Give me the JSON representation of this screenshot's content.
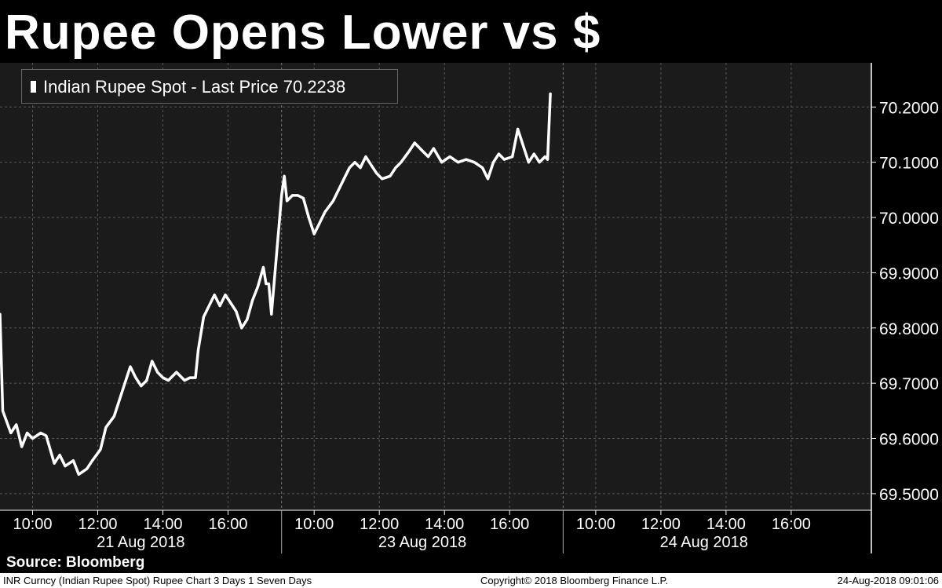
{
  "title": "Rupee Opens Lower vs $",
  "legend": {
    "label": "Indian Rupee Spot - Last Price 70.2238"
  },
  "source": "Source: Bloomberg",
  "footer": {
    "left": "INR Curncy (Indian Rupee Spot) Rupee Chart 3 Days 1 Seven Days",
    "center": "Copyright© 2018 Bloomberg Finance L.P.",
    "right": "24-Aug-2018 09:01:06"
  },
  "colors": {
    "background": "#000000",
    "plot": "#1b1b1b",
    "line": "#ffffff",
    "grid": "#555555"
  },
  "chart_data": {
    "type": "line",
    "grid": true,
    "legend_position": "top-left",
    "ylim": [
      69.47,
      70.28
    ],
    "y_ticks": [
      "70.2000",
      "70.1000",
      "70.0000",
      "69.9000",
      "69.8000",
      "69.7000",
      "69.6000",
      "69.5000"
    ],
    "y_tick_values": [
      70.2,
      70.1,
      70.0,
      69.9,
      69.8,
      69.7,
      69.6,
      69.5
    ],
    "sessions": [
      {
        "date": "21 Aug 2018",
        "ticks": [
          "10:00",
          "12:00",
          "14:00",
          "16:00"
        ]
      },
      {
        "date": "23 Aug 2018",
        "ticks": [
          "10:00",
          "12:00",
          "14:00",
          "16:00"
        ]
      },
      {
        "date": "24 Aug 2018",
        "ticks": [
          "10:00",
          "12:00",
          "14:00",
          "16:00"
        ]
      }
    ],
    "series": [
      {
        "name": "Indian Rupee Spot",
        "last": 70.2238,
        "points": [
          [
            "21 Aug 09:00",
            69.825
          ],
          [
            "21 Aug 09:05",
            69.65
          ],
          [
            "21 Aug 09:20",
            69.61
          ],
          [
            "21 Aug 09:30",
            69.625
          ],
          [
            "21 Aug 09:40",
            69.585
          ],
          [
            "21 Aug 09:50",
            69.61
          ],
          [
            "21 Aug 10:00",
            69.6
          ],
          [
            "21 Aug 10:15",
            69.61
          ],
          [
            "21 Aug 10:25",
            69.605
          ],
          [
            "21 Aug 10:40",
            69.555
          ],
          [
            "21 Aug 10:50",
            69.57
          ],
          [
            "21 Aug 11:00",
            69.55
          ],
          [
            "21 Aug 11:15",
            69.56
          ],
          [
            "21 Aug 11:25",
            69.535
          ],
          [
            "21 Aug 11:40",
            69.545
          ],
          [
            "21 Aug 11:50",
            69.56
          ],
          [
            "21 Aug 12:05",
            69.58
          ],
          [
            "21 Aug 12:15",
            69.62
          ],
          [
            "21 Aug 12:30",
            69.64
          ],
          [
            "21 Aug 12:40",
            69.67
          ],
          [
            "21 Aug 12:50",
            69.7
          ],
          [
            "21 Aug 13:00",
            69.73
          ],
          [
            "21 Aug 13:10",
            69.71
          ],
          [
            "21 Aug 13:20",
            69.695
          ],
          [
            "21 Aug 13:30",
            69.705
          ],
          [
            "21 Aug 13:40",
            69.74
          ],
          [
            "21 Aug 13:50",
            69.72
          ],
          [
            "21 Aug 14:00",
            69.71
          ],
          [
            "21 Aug 14:10",
            69.705
          ],
          [
            "21 Aug 14:25",
            69.72
          ],
          [
            "21 Aug 14:40",
            69.705
          ],
          [
            "21 Aug 14:50",
            69.71
          ],
          [
            "21 Aug 15:00",
            69.71
          ],
          [
            "21 Aug 15:05",
            69.76
          ],
          [
            "21 Aug 15:15",
            69.82
          ],
          [
            "21 Aug 15:25",
            69.84
          ],
          [
            "21 Aug 15:35",
            69.86
          ],
          [
            "21 Aug 15:45",
            69.84
          ],
          [
            "21 Aug 15:55",
            69.86
          ],
          [
            "21 Aug 16:05",
            69.845
          ],
          [
            "21 Aug 16:15",
            69.83
          ],
          [
            "21 Aug 16:25",
            69.8
          ],
          [
            "21 Aug 16:35",
            69.815
          ],
          [
            "21 Aug 16:45",
            69.85
          ],
          [
            "21 Aug 16:55",
            69.875
          ],
          [
            "21 Aug 17:05",
            69.91
          ],
          [
            "21 Aug 17:10",
            69.88
          ],
          [
            "21 Aug 17:15",
            69.88
          ],
          [
            "21 Aug 17:20",
            69.825
          ],
          [
            "23 Aug 09:00",
            70.04
          ],
          [
            "23 Aug 09:05",
            70.075
          ],
          [
            "23 Aug 09:10",
            70.03
          ],
          [
            "23 Aug 09:20",
            70.04
          ],
          [
            "23 Aug 09:30",
            70.04
          ],
          [
            "23 Aug 09:40",
            70.035
          ],
          [
            "23 Aug 09:50",
            70.0
          ],
          [
            "23 Aug 10:00",
            69.97
          ],
          [
            "23 Aug 10:10",
            69.99
          ],
          [
            "23 Aug 10:20",
            70.01
          ],
          [
            "23 Aug 10:35",
            70.03
          ],
          [
            "23 Aug 10:45",
            70.05
          ],
          [
            "23 Aug 10:55",
            70.07
          ],
          [
            "23 Aug 11:05",
            70.09
          ],
          [
            "23 Aug 11:15",
            70.1
          ],
          [
            "23 Aug 11:25",
            70.09
          ],
          [
            "23 Aug 11:35",
            70.11
          ],
          [
            "23 Aug 11:45",
            70.095
          ],
          [
            "23 Aug 11:55",
            70.08
          ],
          [
            "23 Aug 12:05",
            70.07
          ],
          [
            "23 Aug 12:20",
            70.075
          ],
          [
            "23 Aug 12:30",
            70.09
          ],
          [
            "23 Aug 12:40",
            70.1
          ],
          [
            "23 Aug 12:55",
            70.12
          ],
          [
            "23 Aug 13:05",
            70.135
          ],
          [
            "23 Aug 13:20",
            70.12
          ],
          [
            "23 Aug 13:30",
            70.11
          ],
          [
            "23 Aug 13:40",
            70.125
          ],
          [
            "23 Aug 13:55",
            70.1
          ],
          [
            "23 Aug 14:10",
            70.11
          ],
          [
            "23 Aug 14:25",
            70.1
          ],
          [
            "23 Aug 14:40",
            70.105
          ],
          [
            "23 Aug 14:55",
            70.1
          ],
          [
            "23 Aug 15:10",
            70.09
          ],
          [
            "23 Aug 15:20",
            70.07
          ],
          [
            "23 Aug 15:30",
            70.1
          ],
          [
            "23 Aug 15:40",
            70.115
          ],
          [
            "23 Aug 15:50",
            70.105
          ],
          [
            "23 Aug 16:05",
            70.11
          ],
          [
            "23 Aug 16:15",
            70.16
          ],
          [
            "23 Aug 16:25",
            70.13
          ],
          [
            "23 Aug 16:35",
            70.1
          ],
          [
            "23 Aug 16:45",
            70.115
          ],
          [
            "23 Aug 16:55",
            70.1
          ],
          [
            "23 Aug 17:05",
            70.11
          ],
          [
            "23 Aug 17:10",
            70.105
          ],
          [
            "23 Aug 17:15",
            70.2238
          ]
        ]
      }
    ]
  }
}
